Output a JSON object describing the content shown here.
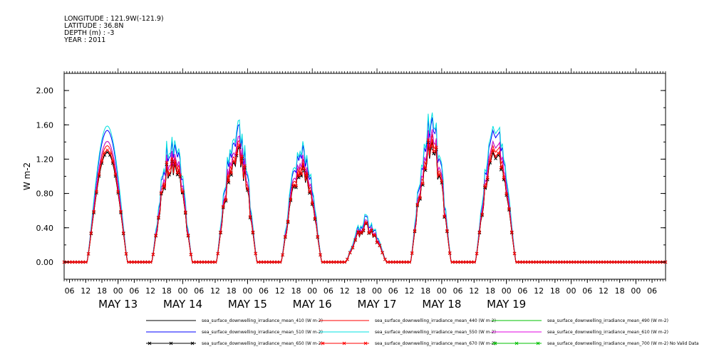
{
  "header": {
    "longitude": "LONGITUDE : 121.9W(-121.9)",
    "latitude": "LATITUDE : 36.8N",
    "depth": "DEPTH (m) : -3",
    "year": "YEAR : 2011"
  },
  "chart_data": {
    "type": "line",
    "ylabel": "W m-2",
    "ylim": [
      -0.2,
      2.2
    ],
    "yticks": [
      "0.00",
      "0.40",
      "0.80",
      "1.20",
      "1.60",
      "2.00"
    ],
    "xlim_hours": [
      -20,
      203
    ],
    "x_hour_labels": [
      "06",
      "12",
      "18",
      "00"
    ],
    "day_labels": [
      "MAY 13",
      "MAY 14",
      "MAY 15",
      "MAY 16",
      "MAY 17",
      "MAY 18",
      "MAY 19"
    ],
    "grid": false,
    "legend_placement": "bottom",
    "x_description": "hours from 2011-05-13 00:00",
    "days": [
      {
        "start": 0,
        "peak": 1.28,
        "noise": 0.0,
        "gap_after": true
      },
      {
        "start": 24,
        "peak": 1.18,
        "noise": 0.35,
        "gap_after": false
      },
      {
        "start": 48,
        "peak": 1.32,
        "noise": 0.3,
        "gap_after": false
      },
      {
        "start": 72,
        "peak": 1.12,
        "noise": 0.3,
        "gap_after": false
      },
      {
        "start": 96,
        "peak": 0.42,
        "noise": 0.35,
        "gap_after": false
      },
      {
        "start": 120,
        "peak": 1.38,
        "noise": 0.35,
        "gap_after": false
      },
      {
        "start": 144,
        "peak": 1.32,
        "noise": 0.2,
        "gap_after": false
      }
    ],
    "series": [
      {
        "name": "sea_surface_downwelling_irradiance_mean_410 (W m-2)",
        "color": "#000000",
        "scale": 1.0,
        "marker": false
      },
      {
        "name": "sea_surface_downwelling_irradiance_mean_440 (W m-2)",
        "color": "#ff0000",
        "scale": 1.06,
        "marker": false
      },
      {
        "name": "sea_surface_downwelling_irradiance_mean_490 (W m-2)",
        "color": "#00c000",
        "scale": 1.1,
        "marker": false
      },
      {
        "name": "sea_surface_downwelling_irradiance_mean_510 (W m-2)",
        "color": "#0000ff",
        "scale": 1.2,
        "marker": false
      },
      {
        "name": "sea_surface_downwelling_irradiance_mean_550 (W m-2)",
        "color": "#00e0e0",
        "scale": 1.24,
        "marker": false
      },
      {
        "name": "sea_surface_downwelling_irradiance_mean_610 (W m-2)",
        "color": "#e000e0",
        "scale": 1.1,
        "marker": false
      },
      {
        "name": "sea_surface_downwelling_irradiance_mean_650 (W m-2)",
        "color": "#000000",
        "scale": 1.0,
        "marker": true
      },
      {
        "name": "sea_surface_downwelling_irradiance_mean_670 (W m-2)",
        "color": "#ff0000",
        "scale": 1.02,
        "marker": true
      },
      {
        "name": "sea_surface_downwelling_irradiance_mean_700 (W m-2) No Valid Data",
        "color": "#00c000",
        "scale": 0,
        "marker": true
      }
    ]
  }
}
